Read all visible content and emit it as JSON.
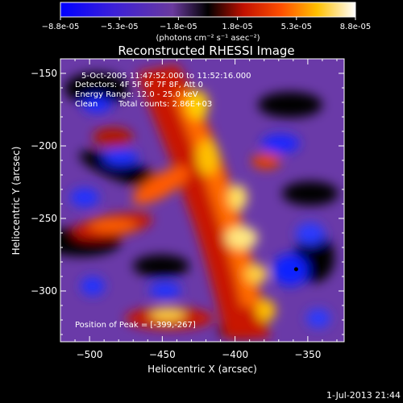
{
  "colorbar": {
    "ticks": [
      "-8.8e-05",
      "-5.3e-05",
      "-1.8e-05",
      "1.8e-05",
      "5.3e-05",
      "8.8e-05"
    ],
    "unit": "(photons cm⁻² s⁻¹ asec⁻²)",
    "range": [
      -8.8e-05,
      8.8e-05
    ]
  },
  "chart_data": {
    "type": "heatmap",
    "title": "Reconstructed RHESSI Image",
    "xlabel": "Heliocentric X (arcsec)",
    "ylabel": "Heliocentric Y (arcsec)",
    "xlim": [
      -520,
      -325
    ],
    "ylim": [
      -335,
      -140
    ],
    "xticks": [
      -500,
      -450,
      -400,
      -350
    ],
    "yticks": [
      -150,
      -200,
      -250,
      -300
    ],
    "peak": {
      "x": -399,
      "y": -267
    },
    "min_marker": {
      "x": -358,
      "y": -285
    }
  },
  "annotations": {
    "time_range": "5-Oct-2005 11:47:52.000 to 11:52:16.000",
    "detectors": "Detectors: 4F 5F 6F 7F 8F, Att 0",
    "energy": "Energy Range: 12.0 - 25.0 keV",
    "clean": "Clean",
    "counts": "Total counts: 2.86E+03",
    "peak_text": "Position of Peak = [-399,-267]"
  },
  "timestamp": "1-Jul-2013 21:44"
}
